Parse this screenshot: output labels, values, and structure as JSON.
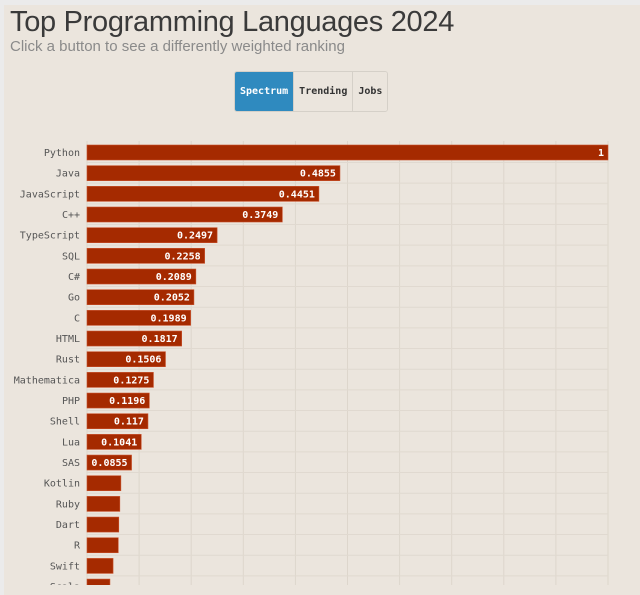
{
  "header": {
    "title": "Top Programming Languages 2024",
    "subtitle": "Click a button to see a differently weighted ranking"
  },
  "buttons": [
    {
      "label": "Spectrum",
      "active": true
    },
    {
      "label": "Trending",
      "active": false
    },
    {
      "label": "Jobs",
      "active": false
    }
  ],
  "colors": {
    "bar": "#a52a00",
    "active_button": "#2f8abf",
    "background": "#ebe5dd"
  },
  "chart_data": {
    "type": "bar",
    "orientation": "horizontal",
    "xlim": [
      0,
      1
    ],
    "grid": true,
    "categories": [
      "Python",
      "Java",
      "JavaScript",
      "C++",
      "TypeScript",
      "SQL",
      "C#",
      "Go",
      "C",
      "HTML",
      "Rust",
      "Mathematica",
      "PHP",
      "Shell",
      "Lua",
      "SAS",
      "Kotlin",
      "Ruby",
      "Dart",
      "R",
      "Swift",
      "Scala"
    ],
    "values": [
      1,
      0.4855,
      0.4451,
      0.3749,
      0.2497,
      0.2258,
      0.2089,
      0.2052,
      0.1989,
      0.1817,
      0.1506,
      0.1275,
      0.1196,
      0.117,
      0.1041,
      0.0855,
      0.065,
      0.063,
      0.061,
      0.06,
      0.05,
      0.044
    ],
    "labels": [
      "1",
      "0.4855",
      "0.4451",
      "0.3749",
      "0.2497",
      "0.2258",
      "0.2089",
      "0.2052",
      "0.1989",
      "0.1817",
      "0.1506",
      "0.1275",
      "0.1196",
      "0.117",
      "0.1041",
      "0.0855",
      "",
      "",
      "",
      "",
      "",
      ""
    ]
  }
}
